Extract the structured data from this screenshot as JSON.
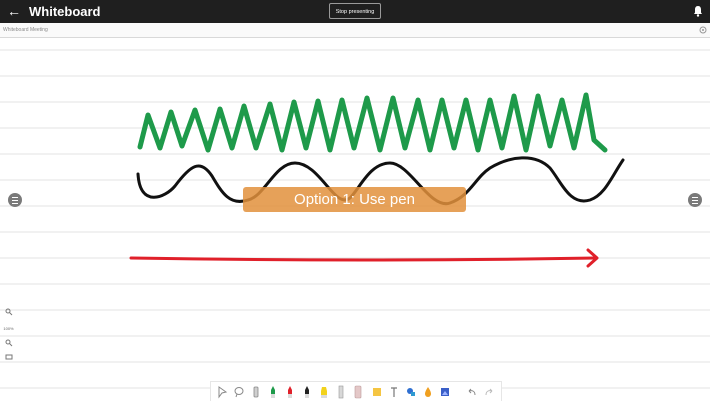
{
  "header": {
    "app_title": "Whiteboard",
    "present_button_label": "Stop presenting",
    "back_icon": "arrow-left-icon",
    "notification_icon": "bell-icon"
  },
  "subheader": {
    "document_name": "Whiteboard Meeting",
    "settings_icon": "gear-icon"
  },
  "canvas": {
    "background": "#ffffff",
    "rule_line_color": "#e3e3e3",
    "strokes": [
      {
        "name": "green-zigzag-stroke",
        "color": "#1e9a4a"
      },
      {
        "name": "black-wave-stroke",
        "color": "#111111"
      },
      {
        "name": "red-arrow-stroke",
        "color": "#e0202a"
      }
    ]
  },
  "toast": {
    "text": "Option 1: Use pen",
    "color": "#e2903c"
  },
  "zoom": {
    "zoom_in_icon": "zoom-in-icon",
    "level": "100%",
    "zoom_out_icon": "zoom-out-icon",
    "fit_icon": "fit-screen-icon"
  },
  "toolbar": {
    "tools": [
      "select",
      "lasso",
      "eraser",
      "green-pen",
      "red-pen",
      "black-pen",
      "yellow-highlighter",
      "ruler",
      "sticky-note",
      "text",
      "shapes",
      "fill",
      "image",
      "undo",
      "redo"
    ],
    "accent_colors": {
      "green": "#1e9a4a",
      "red": "#e0202a",
      "yellow": "#f2d21c"
    }
  }
}
